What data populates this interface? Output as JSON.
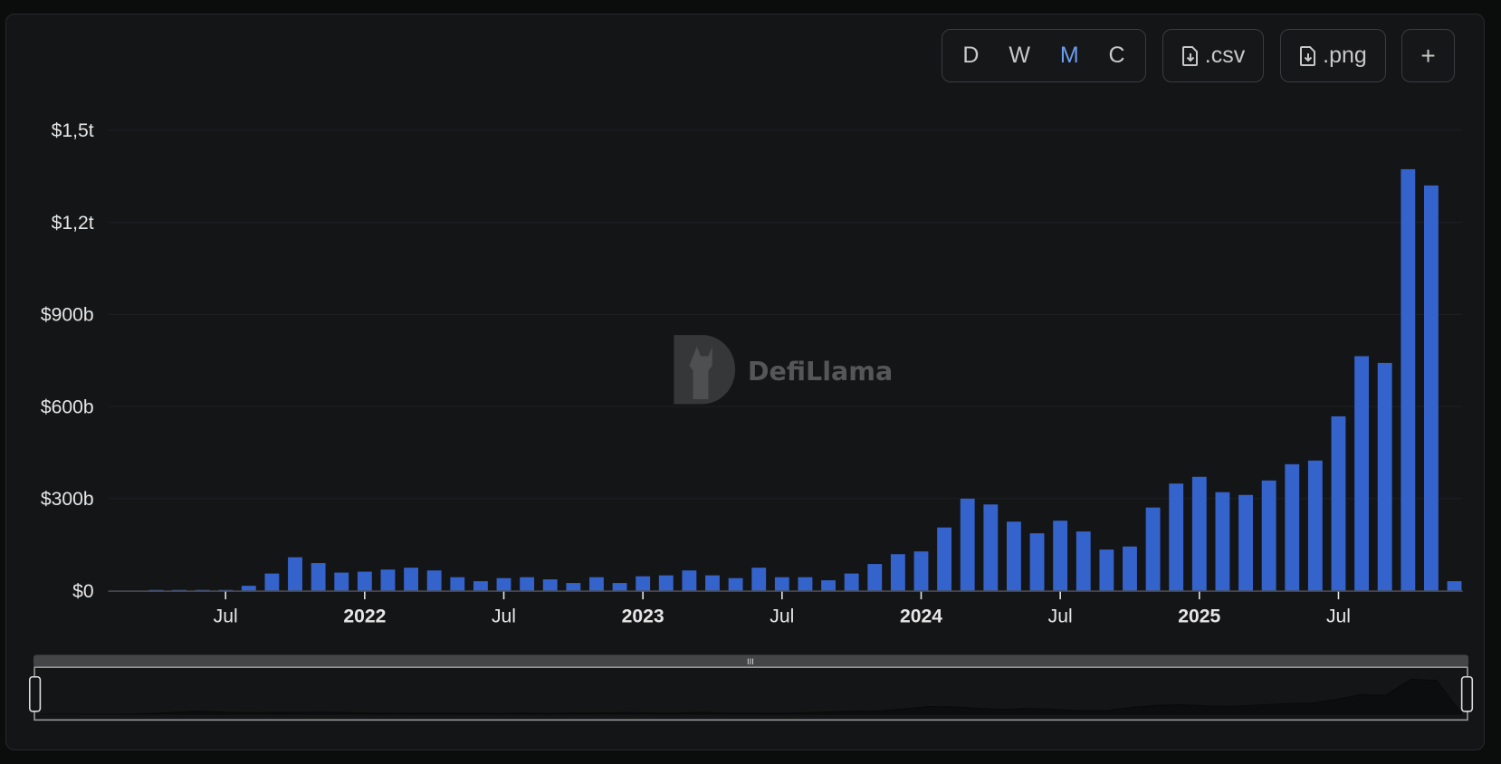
{
  "toolbar": {
    "intervals": [
      {
        "label": "D",
        "active": false
      },
      {
        "label": "W",
        "active": false
      },
      {
        "label": "M",
        "active": true
      },
      {
        "label": "C",
        "active": false
      }
    ],
    "csv_label": ".csv",
    "png_label": ".png",
    "add_label": "+",
    "icons": {
      "csv": "file-download-icon",
      "png": "file-download-icon"
    },
    "active_color": "#6b9cf0"
  },
  "watermark": "DefiLlama",
  "chart_data": {
    "type": "bar",
    "unit": "USD billions",
    "bar_color": "#3563cc",
    "grid": true,
    "yticks": [
      {
        "value": 0,
        "label": "$0"
      },
      {
        "value": 300,
        "label": "$300b"
      },
      {
        "value": 600,
        "label": "$600b"
      },
      {
        "value": 900,
        "label": "$900b"
      },
      {
        "value": 1200,
        "label": "$1,2t"
      },
      {
        "value": 1500,
        "label": "$1,5t"
      }
    ],
    "ylim": [
      0,
      1500
    ],
    "xticks": [
      {
        "month": "2021-07",
        "label": "Jul",
        "bold": false
      },
      {
        "month": "2022-01",
        "label": "2022",
        "bold": true
      },
      {
        "month": "2022-07",
        "label": "Jul",
        "bold": false
      },
      {
        "month": "2023-01",
        "label": "2023",
        "bold": true
      },
      {
        "month": "2023-07",
        "label": "Jul",
        "bold": false
      },
      {
        "month": "2024-01",
        "label": "2024",
        "bold": true
      },
      {
        "month": "2024-07",
        "label": "Jul",
        "bold": false
      },
      {
        "month": "2025-01",
        "label": "2025",
        "bold": true
      },
      {
        "month": "2025-07",
        "label": "Jul",
        "bold": false
      }
    ],
    "categories": [
      "2021-04",
      "2021-05",
      "2021-06",
      "2021-07",
      "2021-08",
      "2021-09",
      "2021-10",
      "2021-11",
      "2021-12",
      "2022-01",
      "2022-02",
      "2022-03",
      "2022-04",
      "2022-05",
      "2022-06",
      "2022-07",
      "2022-08",
      "2022-09",
      "2022-10",
      "2022-11",
      "2022-12",
      "2023-01",
      "2023-02",
      "2023-03",
      "2023-04",
      "2023-05",
      "2023-06",
      "2023-07",
      "2023-08",
      "2023-09",
      "2023-10",
      "2023-11",
      "2023-12",
      "2024-01",
      "2024-02",
      "2024-03",
      "2024-04",
      "2024-05",
      "2024-06",
      "2024-07",
      "2024-08",
      "2024-09",
      "2024-10",
      "2024-11",
      "2024-12",
      "2025-01",
      "2025-02",
      "2025-03",
      "2025-04",
      "2025-05",
      "2025-06",
      "2025-07",
      "2025-08",
      "2025-09",
      "2025-10",
      "2025-11",
      "2025-12"
    ],
    "values": [
      1,
      2,
      1,
      1,
      16,
      56,
      109,
      90,
      59,
      62,
      69,
      75,
      66,
      44,
      31,
      41,
      44,
      37,
      25,
      44,
      25,
      47,
      50,
      66,
      50,
      41,
      75,
      44,
      44,
      34,
      56,
      87,
      119,
      128,
      206,
      300,
      281,
      225,
      187,
      228,
      193,
      134,
      144,
      271,
      349,
      371,
      321,
      312,
      359,
      412,
      424,
      568,
      764,
      742,
      1373,
      1320,
      31
    ]
  }
}
